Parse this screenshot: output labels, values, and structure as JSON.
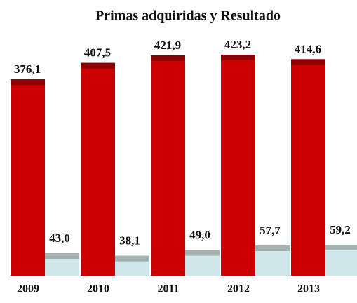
{
  "chart_data": {
    "type": "bar",
    "title": "Primas  adquiridas  y Resultado",
    "categories": [
      "2009",
      "2010",
      "2011",
      "2012",
      "2013"
    ],
    "series": [
      {
        "color": "#cc0000",
        "values": [
          376.1,
          407.5,
          421.9,
          423.2,
          414.6
        ],
        "value_labels": [
          "376,1",
          "407,5",
          "421,9",
          "423,2",
          "414,6"
        ]
      },
      {
        "color": "#cfe6ea",
        "values": [
          43.0,
          38.1,
          49.0,
          57.7,
          59.2
        ],
        "value_labels": [
          "43,0",
          "38,1",
          "49,0",
          "57,7",
          "59,2"
        ]
      }
    ]
  }
}
